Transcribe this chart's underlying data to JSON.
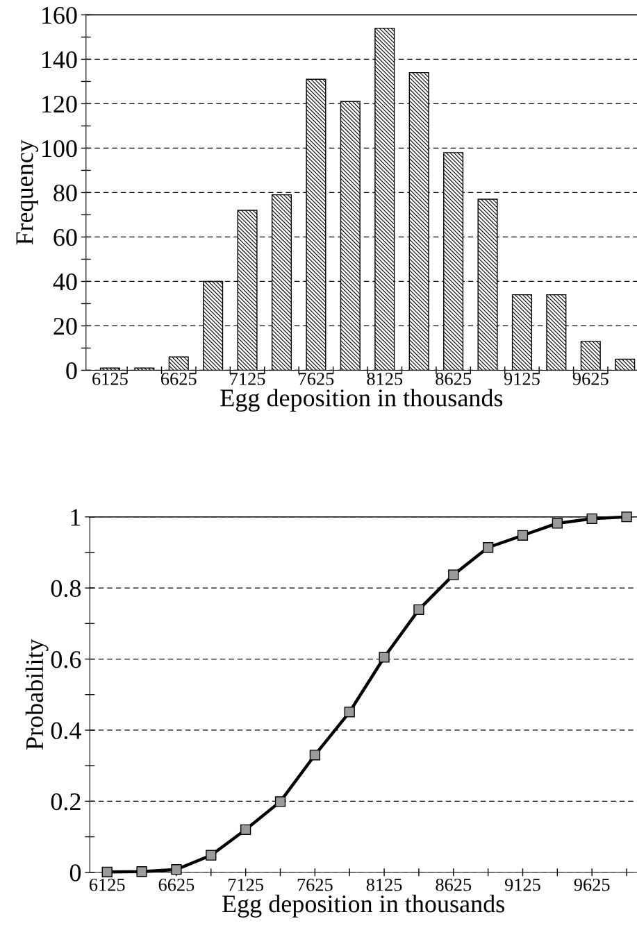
{
  "chart_data": [
    {
      "type": "bar",
      "xlabel": "Egg deposition in thousands",
      "ylabel": "Frequency",
      "categories": [
        "6125",
        null,
        "6625",
        null,
        "7125",
        null,
        "7625",
        null,
        "8125",
        null,
        "8625",
        null,
        "9125",
        null,
        "9625",
        null
      ],
      "series": [
        {
          "color": "#000000",
          "values": [
            1,
            1,
            6,
            40,
            72,
            79,
            131,
            121,
            154,
            134,
            98,
            77,
            34,
            34,
            13,
            5
          ]
        }
      ],
      "ylim": [
        0,
        160
      ],
      "yticks": [
        0,
        {
          "value": 10,
          "label": null
        },
        20,
        {
          "value": 30,
          "label": null
        },
        40,
        {
          "value": 50,
          "label": null
        },
        60,
        {
          "value": 70,
          "label": null
        },
        80,
        {
          "value": 90,
          "label": null
        },
        100,
        {
          "value": 110,
          "label": null
        },
        120,
        {
          "value": 130,
          "label": null
        },
        140,
        {
          "value": 150,
          "label": null
        },
        160
      ],
      "grid": "y",
      "legend": false
    },
    {
      "type": "line",
      "xlabel": "Egg deposition in thousands",
      "ylabel": "Probability",
      "categories": [
        "6125",
        null,
        "6625",
        null,
        "7125",
        null,
        "7625",
        null,
        "8125",
        null,
        "8625",
        null,
        "9125",
        null,
        "9625",
        null
      ],
      "series": [
        {
          "color": "#000000",
          "values": [
            0.001,
            0.002,
            0.008,
            0.048,
            0.12,
            0.199,
            0.33,
            0.451,
            0.605,
            0.739,
            0.837,
            0.914,
            0.948,
            0.982,
            0.995,
            1.0
          ]
        }
      ],
      "ylim": [
        0,
        1
      ],
      "yticks": [
        0,
        {
          "value": 0.1,
          "label": null
        },
        0.2,
        {
          "value": 0.3,
          "label": null
        },
        0.4,
        {
          "value": 0.5,
          "label": null
        },
        0.6,
        {
          "value": 0.7,
          "label": null
        },
        0.8,
        {
          "value": 0.9,
          "label": null
        },
        1
      ],
      "grid": "y",
      "marker": "square",
      "line_style": "solid",
      "legend": false
    }
  ]
}
